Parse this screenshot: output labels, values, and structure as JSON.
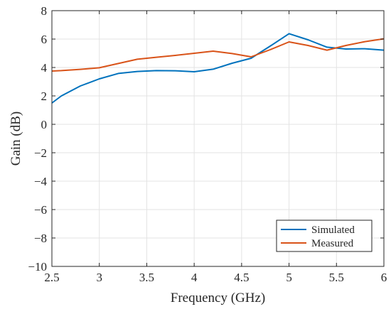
{
  "chart_data": {
    "type": "line",
    "title": "",
    "xlabel": "Frequency (GHz)",
    "ylabel": "Gain (dB)",
    "xlim": [
      2.5,
      6
    ],
    "ylim": [
      -10,
      8
    ],
    "xticks": [
      2.5,
      3,
      3.5,
      4,
      4.5,
      5,
      5.5,
      6
    ],
    "yticks": [
      -10,
      -8,
      -6,
      -4,
      -2,
      0,
      2,
      4,
      6,
      8
    ],
    "xtick_labels": [
      "2.5",
      "3",
      "3.5",
      "4",
      "4.5",
      "5",
      "5.5",
      "6"
    ],
    "ytick_labels": [
      "−10",
      "−8",
      "−6",
      "−4",
      "−2",
      "0",
      "2",
      "4",
      "6",
      "8"
    ],
    "grid": true,
    "legend_position": "bottom-right",
    "series": [
      {
        "name": "Simulated",
        "color": "#0072BD",
        "x": [
          2.5,
          2.6,
          2.8,
          3.0,
          3.2,
          3.4,
          3.6,
          3.8,
          4.0,
          4.2,
          4.4,
          4.6,
          4.8,
          5.0,
          5.2,
          5.4,
          5.6,
          5.8,
          6.0
        ],
        "y": [
          1.5,
          2.0,
          2.7,
          3.2,
          3.58,
          3.72,
          3.78,
          3.77,
          3.7,
          3.88,
          4.3,
          4.65,
          5.5,
          6.38,
          5.95,
          5.43,
          5.3,
          5.32,
          5.22
        ]
      },
      {
        "name": "Measured",
        "color": "#D95319",
        "x": [
          2.5,
          2.6,
          2.8,
          3.0,
          3.2,
          3.4,
          3.6,
          3.8,
          4.0,
          4.2,
          4.4,
          4.6,
          4.8,
          5.0,
          5.2,
          5.4,
          5.6,
          5.8,
          6.0
        ],
        "y": [
          3.75,
          3.78,
          3.87,
          3.98,
          4.28,
          4.58,
          4.72,
          4.85,
          5.0,
          5.15,
          4.98,
          4.75,
          5.25,
          5.8,
          5.55,
          5.22,
          5.55,
          5.82,
          6.02
        ]
      }
    ]
  }
}
